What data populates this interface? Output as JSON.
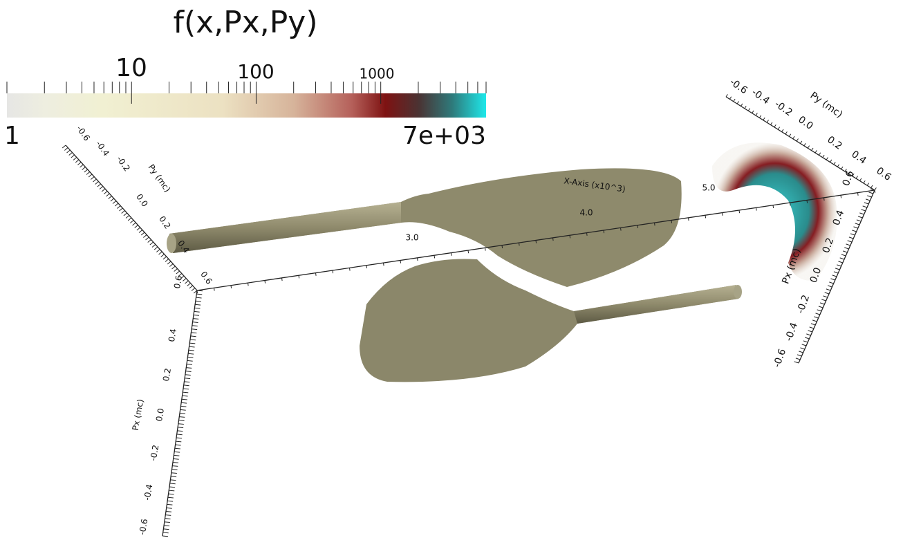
{
  "colorbar": {
    "title": "f(x,Px,Py)",
    "tick_labels": [
      "10",
      "100",
      "1000"
    ],
    "min_label": "1",
    "max_label": "7e+03"
  },
  "left_axes": {
    "py_label": "Py (mc)",
    "py_ticks": [
      "-0.6",
      "-0.4",
      "-0.2",
      "0.0",
      "0.2",
      "0.4",
      "0.6"
    ],
    "px_label": "Px (mc)",
    "px_ticks": [
      "0.6",
      "0.4",
      "0.2",
      "0.0",
      "-0.2",
      "-0.4",
      "-0.6"
    ],
    "x_label": "X-Axis (x10^3)",
    "x_ticks": [
      "3.0",
      "4.0",
      "5.0"
    ]
  },
  "right_axes": {
    "py_label": "Py (mc)",
    "py_ticks": [
      "-0.6",
      "-0.4",
      "-0.2",
      "0.0",
      "0.2",
      "0.4",
      "0.6"
    ],
    "px_label": "Px (mc)",
    "px_ticks": [
      "0.6",
      "0.4",
      "0.2",
      "0.0",
      "-0.2",
      "-0.4",
      "-0.6"
    ]
  }
}
